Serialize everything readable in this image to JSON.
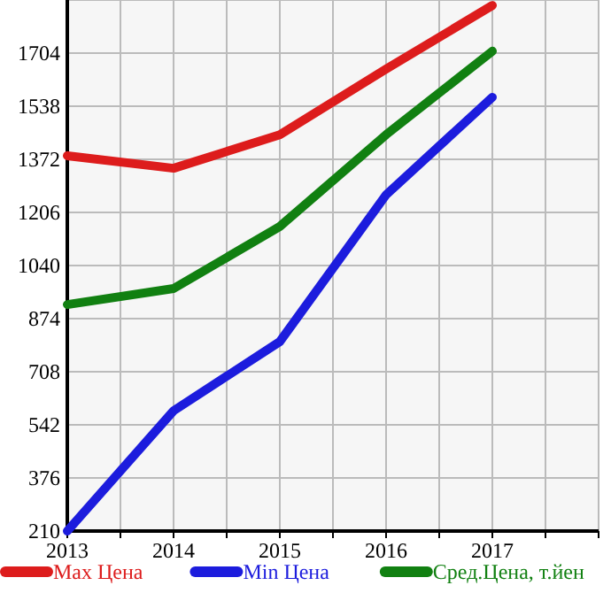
{
  "chart_data": {
    "type": "line",
    "x": [
      2013,
      2014,
      2015,
      2016,
      2017
    ],
    "series": [
      {
        "name": "Max Цена",
        "color": "#dd1c1c",
        "values": [
          1383,
          1344,
          1449,
          1654,
          1853
        ]
      },
      {
        "name": "Min Цена",
        "color": "#1c1cdd",
        "values": [
          210,
          586,
          802,
          1261,
          1566
        ]
      },
      {
        "name": "Сред.Цена, т.йен",
        "color": "#118011",
        "values": [
          918,
          968,
          1162,
          1449,
          1710
        ]
      }
    ],
    "xlim": [
      2013,
      2018
    ],
    "xticks": [
      2013,
      {
        "value": 2013.5,
        "label": null
      },
      2014,
      {
        "value": 2014.5,
        "label": null
      },
      2015,
      {
        "value": 2015.5,
        "label": null
      },
      2016,
      {
        "value": 2016.5,
        "label": null
      },
      2017,
      {
        "value": 2017.5,
        "label": null
      },
      {
        "value": 2018,
        "label": null
      }
    ],
    "ylim": [
      210,
      1870
    ],
    "yticks": [
      210,
      376,
      542,
      708,
      874,
      1040,
      1206,
      1372,
      1538,
      1704,
      {
        "value": 1870,
        "label": null
      }
    ],
    "grid": true,
    "legend": "bottom",
    "marker": "none",
    "line_style": "solid"
  }
}
